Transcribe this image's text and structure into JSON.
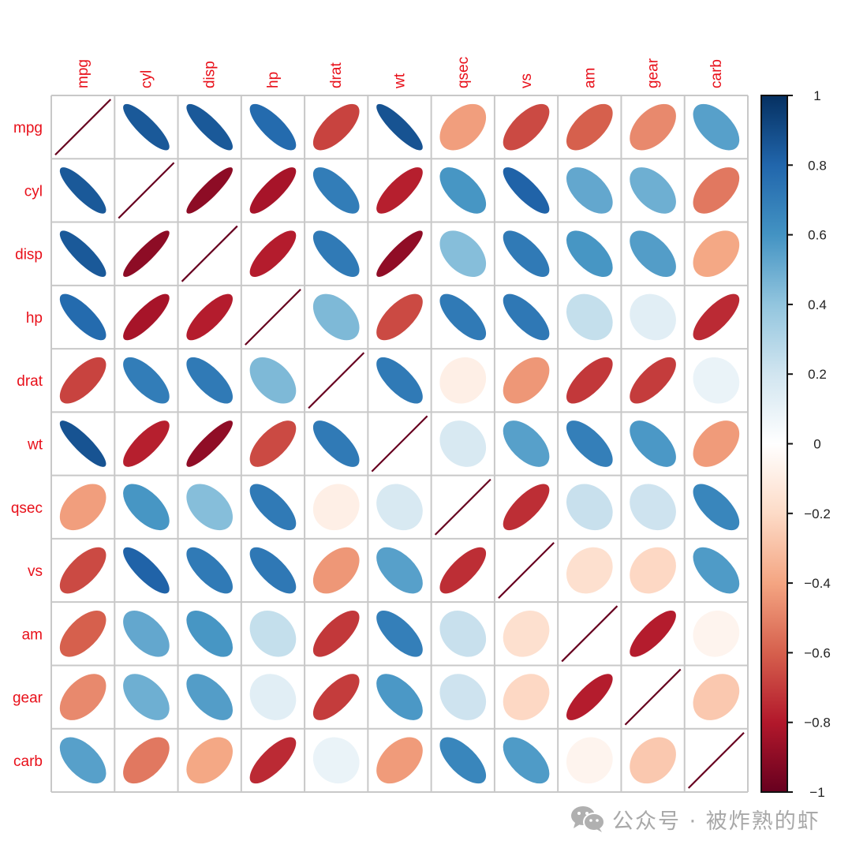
{
  "chart_data": {
    "type": "heatmap",
    "method": "ellipse",
    "title": "",
    "variables": [
      "mpg",
      "cyl",
      "disp",
      "hp",
      "drat",
      "wt",
      "qsec",
      "vs",
      "am",
      "gear",
      "carb"
    ],
    "row_labels": [
      "mpg",
      "cyl",
      "disp",
      "hp",
      "drat",
      "wt",
      "qsec",
      "vs",
      "am",
      "gear",
      "carb"
    ],
    "col_labels": [
      "mpg",
      "cyl",
      "disp",
      "hp",
      "drat",
      "wt",
      "qsec",
      "vs",
      "am",
      "gear",
      "carb"
    ],
    "matrix": [
      [
        1.0,
        -0.85,
        -0.85,
        -0.78,
        0.68,
        -0.87,
        0.42,
        0.66,
        0.6,
        0.48,
        -0.55
      ],
      [
        -0.85,
        1.0,
        0.9,
        0.83,
        -0.7,
        0.78,
        -0.59,
        -0.81,
        -0.52,
        -0.49,
        0.53
      ],
      [
        -0.85,
        0.9,
        1.0,
        0.79,
        -0.71,
        0.89,
        -0.43,
        -0.71,
        -0.59,
        -0.56,
        0.39
      ],
      [
        -0.78,
        0.83,
        0.79,
        1.0,
        -0.45,
        0.66,
        -0.71,
        -0.72,
        -0.24,
        -0.13,
        0.75
      ],
      [
        0.68,
        -0.7,
        -0.71,
        -0.45,
        1.0,
        -0.71,
        0.09,
        0.44,
        0.71,
        0.7,
        -0.09
      ],
      [
        -0.87,
        0.78,
        0.89,
        0.66,
        -0.71,
        1.0,
        -0.17,
        -0.55,
        -0.69,
        -0.58,
        0.43
      ],
      [
        0.42,
        -0.59,
        -0.43,
        -0.71,
        0.09,
        -0.17,
        1.0,
        0.74,
        -0.23,
        -0.21,
        -0.66
      ],
      [
        0.66,
        -0.81,
        -0.71,
        -0.72,
        0.44,
        -0.55,
        0.74,
        1.0,
        0.17,
        0.21,
        -0.57
      ],
      [
        0.6,
        -0.52,
        -0.59,
        -0.24,
        0.71,
        -0.69,
        -0.23,
        0.17,
        1.0,
        0.79,
        0.06
      ],
      [
        0.48,
        -0.49,
        -0.56,
        -0.13,
        0.7,
        -0.58,
        -0.21,
        0.21,
        0.79,
        1.0,
        0.27
      ],
      [
        -0.55,
        0.53,
        0.39,
        0.75,
        -0.09,
        0.43,
        -0.66,
        -0.57,
        0.06,
        0.27,
        1.0
      ]
    ],
    "colorbar": {
      "ticks": [
        "1",
        "0.8",
        "0.6",
        "0.4",
        "0.2",
        "0",
        "−0.2",
        "−0.4",
        "−0.6",
        "−0.8",
        "−1"
      ],
      "tick_values": [
        1,
        0.8,
        0.6,
        0.4,
        0.2,
        0,
        -0.2,
        -0.4,
        -0.6,
        -0.8,
        -1
      ],
      "range": [
        -1,
        1
      ],
      "position": "right"
    },
    "colors": {
      "palette": [
        "#67001F",
        "#B2182B",
        "#D6604D",
        "#F4A582",
        "#FDDBC7",
        "#FFFFFF",
        "#D1E5F0",
        "#92C5DE",
        "#4393C3",
        "#2166AC",
        "#053061"
      ],
      "label_color": "#E8101A",
      "grid_color": "#C8C8C8"
    },
    "grid": true
  },
  "watermark": {
    "text": "公众号 · 被炸熟的虾",
    "icon": "wechat-icon"
  }
}
